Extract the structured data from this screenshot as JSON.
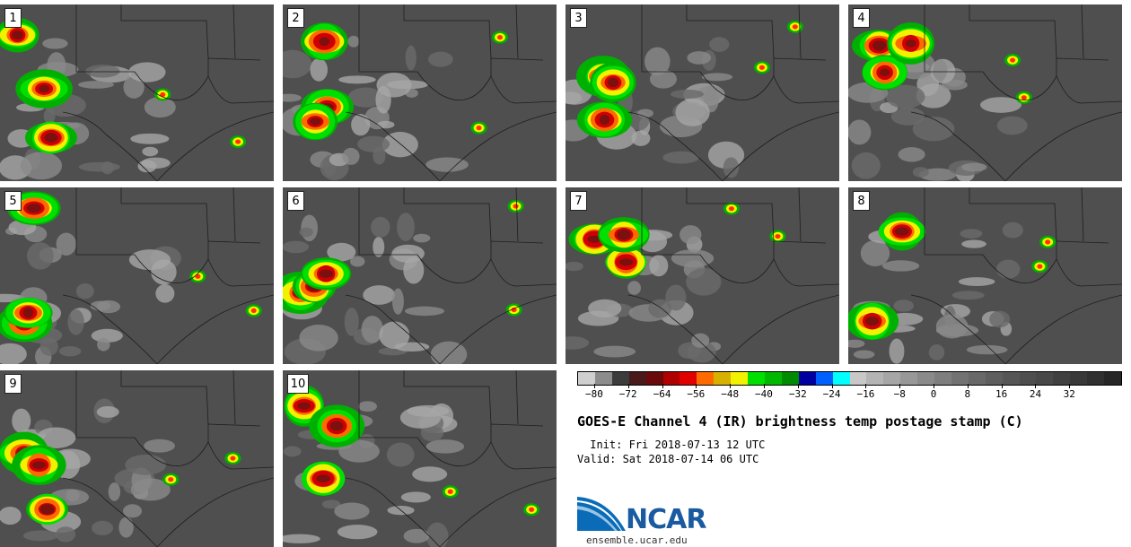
{
  "panels": [
    {
      "id": "panel-1",
      "label": "1"
    },
    {
      "id": "panel-2",
      "label": "2"
    },
    {
      "id": "panel-3",
      "label": "3"
    },
    {
      "id": "panel-4",
      "label": "4"
    },
    {
      "id": "panel-5",
      "label": "5"
    },
    {
      "id": "panel-6",
      "label": "6"
    },
    {
      "id": "panel-7",
      "label": "7"
    },
    {
      "id": "panel-8",
      "label": "8"
    },
    {
      "id": "panel-9",
      "label": "9"
    },
    {
      "id": "panel-10",
      "label": "10"
    }
  ],
  "colorbar": {
    "tick_labels": [
      "−80",
      "−72",
      "−64",
      "−56",
      "−48",
      "−40",
      "−32",
      "−24",
      "−16",
      "−8",
      "0",
      "8",
      "16",
      "24",
      "32"
    ],
    "colors": [
      "#cfcfcf",
      "#8c8c8c",
      "#3c3c3c",
      "#4a1a1a",
      "#6a0a0a",
      "#b00000",
      "#e00000",
      "#ff6a00",
      "#d8b000",
      "#f2f200",
      "#00e000",
      "#00b800",
      "#008a00",
      "#0000a0",
      "#0060ff",
      "#00ffff",
      "#c8c8c8",
      "#b4b4b4",
      "#a6a6a6",
      "#989898",
      "#8a8a8a",
      "#7e7e7e",
      "#727272",
      "#686868",
      "#5e5e5e",
      "#565656",
      "#4e4e4e",
      "#484848",
      "#404040",
      "#383838",
      "#303030",
      "#262626"
    ]
  },
  "title": "GOES-E Channel 4 (IR) brightness temp postage stamp (C)",
  "init": " Init: Fri 2018-07-13 12 UTC",
  "valid": "Valid: Sat 2018-07-14 06 UTC",
  "logo": {
    "name": "NCAR",
    "site": "ensemble.ucar.edu"
  }
}
